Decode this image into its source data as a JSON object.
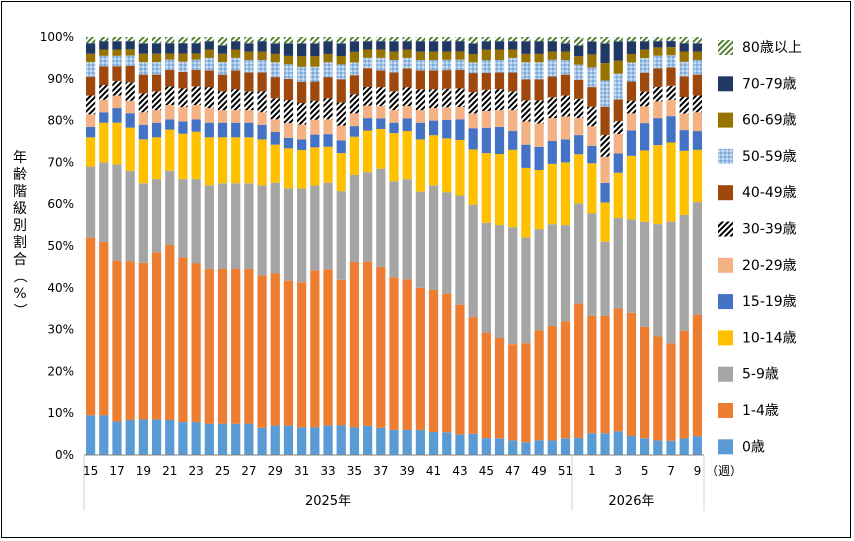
{
  "chart_data": {
    "type": "bar",
    "stacked": true,
    "ylabel": "年齢階級別割合（%）",
    "xunit": "（週）",
    "ylim": [
      0,
      100
    ],
    "yticks": [
      "0%",
      "10%",
      "20%",
      "30%",
      "40%",
      "50%",
      "60%",
      "70%",
      "80%",
      "90%",
      "100%"
    ],
    "years": [
      {
        "label": "2025年",
        "from": 0,
        "to": 36
      },
      {
        "label": "2026年",
        "from": 37,
        "to": 45
      }
    ],
    "weeks": [
      15,
      16,
      17,
      18,
      19,
      20,
      21,
      22,
      23,
      24,
      25,
      26,
      27,
      28,
      29,
      30,
      31,
      32,
      33,
      34,
      35,
      36,
      37,
      38,
      39,
      40,
      41,
      42,
      43,
      44,
      45,
      46,
      47,
      48,
      49,
      50,
      51,
      52,
      1,
      2,
      3,
      4,
      5,
      6,
      7,
      8,
      9
    ],
    "xticklabels": [
      "15",
      "17",
      "19",
      "21",
      "23",
      "25",
      "27",
      "29",
      "31",
      "33",
      "35",
      "37",
      "39",
      "41",
      "43",
      "45",
      "47",
      "49",
      "51",
      "1",
      "3",
      "5",
      "7",
      "9"
    ],
    "series_order_note": "bottom to top",
    "series": [
      {
        "name": "0歳",
        "color": "#5b9bd5",
        "pattern": "",
        "values": [
          9.5,
          9.5,
          8.0,
          8.5,
          8.5,
          8.5,
          8.5,
          8.0,
          8.0,
          7.5,
          7.5,
          7.5,
          7.5,
          6.5,
          7.0,
          7.0,
          6.5,
          6.5,
          7.0,
          7.0,
          6.5,
          7.0,
          6.5,
          6.0,
          6.0,
          6.0,
          5.5,
          5.5,
          5.0,
          5.0,
          4.0,
          4.0,
          3.5,
          3.0,
          3.5,
          3.5,
          4.0,
          4.0,
          5.0,
          5.0,
          5.5,
          4.5,
          4.0,
          3.5,
          3.5,
          4.0,
          4.5
        ]
      },
      {
        "name": "1-4歳",
        "color": "#ed7d31",
        "pattern": "",
        "values": [
          42.5,
          41.5,
          38.5,
          38.5,
          37.5,
          40.0,
          42.5,
          40.0,
          38.5,
          37.0,
          37.0,
          37.0,
          37.0,
          36.5,
          36.0,
          34.5,
          34.0,
          37.0,
          37.0,
          34.5,
          39.0,
          39.5,
          38.5,
          36.5,
          36.0,
          34.0,
          34.0,
          33.5,
          31.5,
          27.5,
          25.0,
          24.0,
          23.0,
          23.5,
          26.0,
          27.5,
          28.0,
          31.5,
          27.0,
          27.0,
          28.5,
          29.0,
          26.5,
          25.0,
          24.0,
          26.0,
          29.0
        ]
      },
      {
        "name": "5-9歳",
        "color": "#a5a5a5",
        "pattern": "",
        "values": [
          17.0,
          19.0,
          23.0,
          22.0,
          19.0,
          17.5,
          18.0,
          19.0,
          20.5,
          20.0,
          20.5,
          20.5,
          20.5,
          21.5,
          21.5,
          22.0,
          22.0,
          20.0,
          20.5,
          21.0,
          20.5,
          21.5,
          23.5,
          23.0,
          24.0,
          23.0,
          25.0,
          24.5,
          26.5,
          26.5,
          26.0,
          27.0,
          28.0,
          25.0,
          24.0,
          24.5,
          23.0,
          23.5,
          23.5,
          17.0,
          21.0,
          22.0,
          25.0,
          27.0,
          30.0,
          28.0,
          27.0
        ]
      },
      {
        "name": "10-14歳",
        "color": "#ffc000",
        "pattern": "",
        "values": [
          7.0,
          9.5,
          10.0,
          10.5,
          10.5,
          10.0,
          10.0,
          11.0,
          11.5,
          11.5,
          11.0,
          11.0,
          11.0,
          11.0,
          9.0,
          9.5,
          9.0,
          9.0,
          8.5,
          9.0,
          9.0,
          10.0,
          9.5,
          11.5,
          11.5,
          12.5,
          12.0,
          13.0,
          13.5,
          13.0,
          16.5,
          17.0,
          18.5,
          16.5,
          14.0,
          14.5,
          15.0,
          11.5,
          11.5,
          9.0,
          10.5,
          15.0,
          17.0,
          19.0,
          19.5,
          15.5,
          12.5
        ]
      },
      {
        "name": "15-19歳",
        "color": "#4472c4",
        "pattern": "",
        "values": [
          2.5,
          2.5,
          3.5,
          3.5,
          3.5,
          3.5,
          2.5,
          3.0,
          3.0,
          3.5,
          3.5,
          3.5,
          3.5,
          3.5,
          3.0,
          2.5,
          2.5,
          3.0,
          3.0,
          3.0,
          2.5,
          3.0,
          2.5,
          2.5,
          3.0,
          4.0,
          3.5,
          4.5,
          5.0,
          5.0,
          6.0,
          6.5,
          4.5,
          5.5,
          5.5,
          5.5,
          5.5,
          4.5,
          4.0,
          4.5,
          4.5,
          6.0,
          6.5,
          6.5,
          6.5,
          5.0,
          4.5
        ]
      },
      {
        "name": "20-29歳",
        "color": "#f4b183",
        "pattern": "",
        "values": [
          3.0,
          3.0,
          3.0,
          3.0,
          3.0,
          3.0,
          3.5,
          3.5,
          3.5,
          3.5,
          3.0,
          3.0,
          3.0,
          3.0,
          3.0,
          3.5,
          3.5,
          3.5,
          3.5,
          3.5,
          3.0,
          3.0,
          3.0,
          3.0,
          3.0,
          3.0,
          3.0,
          3.0,
          3.0,
          3.5,
          4.0,
          4.0,
          5.0,
          5.5,
          5.5,
          5.5,
          5.5,
          4.0,
          4.5,
          6.0,
          4.5,
          4.0,
          4.0,
          4.0,
          4.0,
          4.0,
          4.5
        ]
      },
      {
        "name": "30-39歳",
        "color": "#000000",
        "pattern": "hatch",
        "values": [
          4.5,
          3.5,
          3.5,
          4.5,
          4.5,
          4.5,
          4.5,
          4.5,
          4.5,
          5.0,
          4.5,
          5.0,
          4.5,
          5.0,
          5.0,
          5.5,
          5.0,
          4.5,
          5.0,
          5.5,
          4.5,
          4.5,
          4.5,
          4.5,
          4.5,
          5.0,
          4.5,
          4.5,
          4.5,
          5.0,
          5.0,
          5.0,
          4.5,
          5.0,
          5.5,
          5.0,
          5.0,
          4.5,
          4.5,
          5.0,
          3.0,
          3.0,
          3.5,
          3.5,
          3.5,
          4.0,
          4.0
        ]
      },
      {
        "name": "40-49歳",
        "color": "#9e480e",
        "pattern": "",
        "values": [
          4.5,
          4.5,
          3.5,
          4.0,
          4.5,
          4.0,
          4.0,
          4.0,
          4.0,
          4.0,
          4.0,
          4.5,
          4.5,
          4.5,
          5.0,
          5.0,
          5.0,
          4.5,
          5.0,
          5.5,
          4.5,
          4.5,
          4.0,
          4.5,
          4.5,
          4.5,
          4.5,
          4.5,
          4.5,
          4.5,
          4.0,
          4.0,
          4.5,
          5.0,
          5.0,
          5.0,
          5.0,
          4.5,
          4.5,
          6.5,
          5.0,
          4.5,
          4.5,
          4.5,
          4.5,
          5.0,
          5.0
        ]
      },
      {
        "name": "50-59歳",
        "color": "#9dc3e6",
        "pattern": "dots",
        "values": [
          3.5,
          2.5,
          2.5,
          2.5,
          3.0,
          3.0,
          2.5,
          2.5,
          2.5,
          3.0,
          3.0,
          3.0,
          3.0,
          3.0,
          3.5,
          3.5,
          3.5,
          3.5,
          3.5,
          3.5,
          3.0,
          2.5,
          3.0,
          3.0,
          2.5,
          2.5,
          2.5,
          2.5,
          2.5,
          2.5,
          3.0,
          3.0,
          3.5,
          4.0,
          4.0,
          4.0,
          3.5,
          3.5,
          4.5,
          6.0,
          6.0,
          4.5,
          3.5,
          3.0,
          3.0,
          3.5,
          3.5
        ]
      },
      {
        "name": "60-69歳",
        "color": "#997300",
        "pattern": "",
        "values": [
          2.0,
          1.5,
          1.5,
          1.5,
          2.0,
          2.0,
          1.5,
          2.0,
          1.5,
          2.0,
          2.0,
          2.0,
          2.0,
          2.0,
          2.0,
          2.0,
          2.5,
          2.5,
          2.0,
          2.0,
          2.5,
          2.0,
          2.0,
          2.0,
          2.0,
          2.0,
          2.0,
          2.0,
          2.0,
          2.0,
          2.5,
          2.5,
          2.0,
          2.0,
          2.0,
          2.0,
          2.0,
          2.0,
          3.0,
          4.0,
          3.0,
          2.0,
          2.0,
          2.0,
          2.0,
          2.5,
          2.0
        ]
      },
      {
        "name": "70-79歳",
        "color": "#203864",
        "pattern": "",
        "values": [
          2.5,
          2.0,
          2.0,
          2.0,
          2.5,
          2.5,
          2.5,
          2.5,
          2.5,
          2.0,
          2.0,
          2.0,
          2.0,
          2.5,
          2.5,
          3.0,
          3.0,
          3.0,
          3.0,
          3.0,
          2.5,
          2.0,
          2.0,
          2.5,
          2.0,
          2.5,
          2.5,
          2.5,
          2.5,
          2.5,
          2.0,
          2.0,
          2.0,
          3.0,
          3.0,
          2.5,
          2.0,
          2.5,
          3.0,
          4.5,
          4.5,
          3.0,
          2.0,
          1.5,
          1.5,
          2.0,
          2.0
        ]
      },
      {
        "name": "80歳以上",
        "color": "#548235",
        "pattern": "hatch",
        "values": [
          1.5,
          1.0,
          1.0,
          1.0,
          1.5,
          1.5,
          1.5,
          1.5,
          1.5,
          1.0,
          2.0,
          1.0,
          1.5,
          1.0,
          1.5,
          1.5,
          1.5,
          1.5,
          1.0,
          1.5,
          1.0,
          1.0,
          1.0,
          1.0,
          1.0,
          1.0,
          1.0,
          1.0,
          1.0,
          1.5,
          1.0,
          1.0,
          1.0,
          1.0,
          1.0,
          1.0,
          1.5,
          2.0,
          1.0,
          1.5,
          1.0,
          1.0,
          1.0,
          1.0,
          1.0,
          1.5,
          1.5
        ]
      }
    ]
  }
}
